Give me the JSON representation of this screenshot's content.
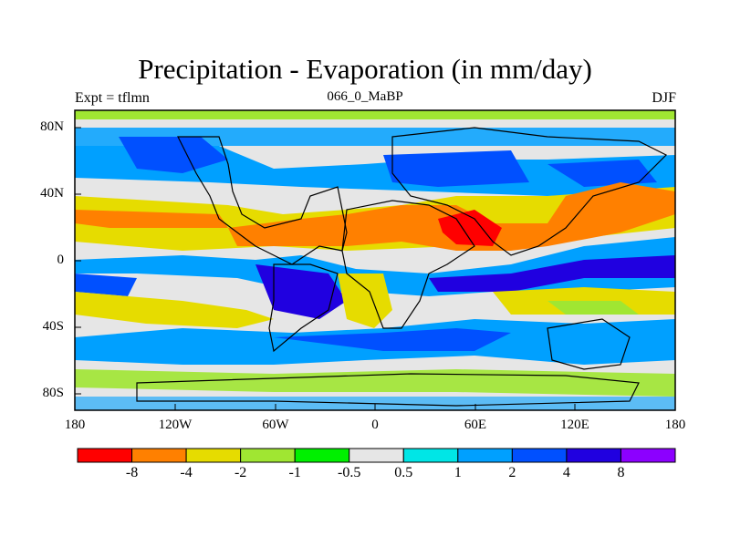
{
  "title": "Precipitation - Evaporation (in mm/day)",
  "left_label": "Expt = tflmn",
  "center_label": "066_0_MaBP",
  "right_label": "DJF",
  "map": {
    "projection": "cylindrical-equidistant",
    "lon_range": [
      -180,
      180
    ],
    "lat_range": [
      -90,
      90
    ],
    "x_ticks": [
      "180",
      "120W",
      "60W",
      "0",
      "60E",
      "120E",
      "180"
    ],
    "y_ticks": [
      "80N",
      "40N",
      "0",
      "40S",
      "80S"
    ],
    "grid": false
  },
  "colorbar": {
    "colors": [
      "#ff0000",
      "#ff8000",
      "#e6dc00",
      "#a0e632",
      "#00f000",
      "#e6e6e6",
      "#00e6e6",
      "#00a0ff",
      "#0050ff",
      "#2000e0",
      "#8c00ff"
    ],
    "labels": [
      "-8",
      "-4",
      "-2",
      "-1",
      "-0.5",
      "0.5",
      "1",
      "2",
      "4",
      "8"
    ]
  }
}
